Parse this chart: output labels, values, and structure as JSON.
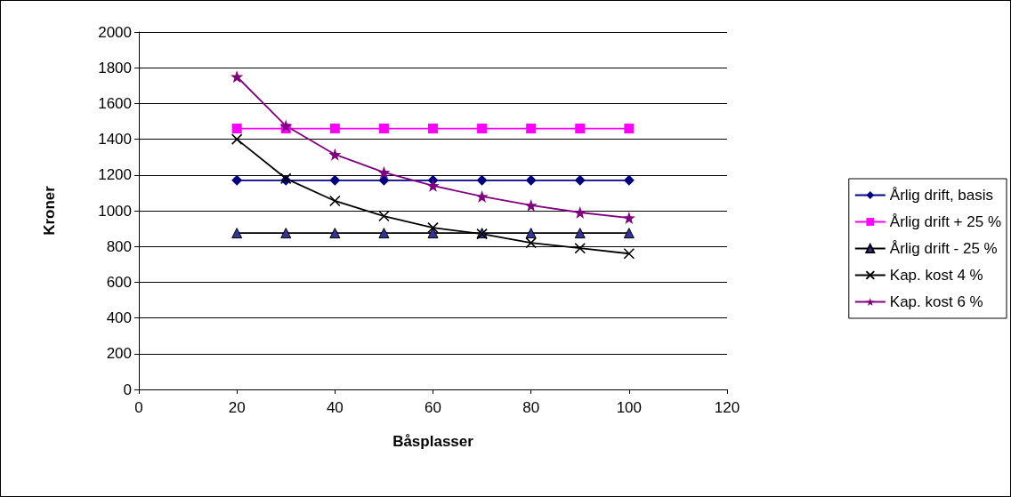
{
  "chart_data": {
    "type": "line",
    "xlabel": "Båsplasser",
    "ylabel": "Kroner",
    "x": [
      20,
      30,
      40,
      50,
      60,
      70,
      80,
      90,
      100
    ],
    "series": [
      {
        "name": "Årlig drift, basis",
        "color": "#000080",
        "marker": "diamond",
        "values": [
          1170,
          1170,
          1170,
          1170,
          1170,
          1170,
          1170,
          1170,
          1170
        ]
      },
      {
        "name": "Årlig drift + 25 %",
        "color": "#ff00ff",
        "marker": "square",
        "values": [
          1460,
          1460,
          1460,
          1460,
          1460,
          1460,
          1460,
          1460,
          1460
        ]
      },
      {
        "name": "Årlig drift - 25 %",
        "color": "#000000",
        "marker": "triangle",
        "values": [
          875,
          875,
          875,
          875,
          875,
          875,
          875,
          875,
          875
        ]
      },
      {
        "name": "Kap. kost 4 %",
        "color": "#000000",
        "marker": "cross",
        "values": [
          1400,
          1180,
          1055,
          970,
          905,
          870,
          820,
          790,
          760
        ]
      },
      {
        "name": "Kap. kost 6 %",
        "color": "#800080",
        "marker": "star",
        "values": [
          1750,
          1475,
          1315,
          1215,
          1140,
          1080,
          1030,
          990,
          960
        ]
      }
    ],
    "xlim": [
      0,
      120
    ],
    "xticks": [
      0,
      20,
      40,
      60,
      80,
      100,
      120
    ],
    "ylim": [
      0,
      2000
    ],
    "yticks": [
      0,
      200,
      400,
      600,
      800,
      1000,
      1200,
      1400,
      1600,
      1800,
      2000
    ],
    "grid": "y",
    "legend": "right"
  }
}
